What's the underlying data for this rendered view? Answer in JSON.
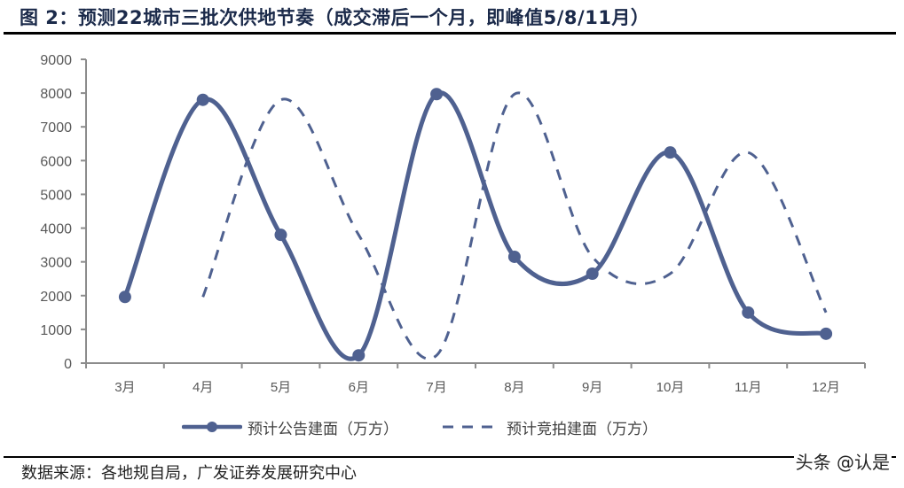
{
  "header": {
    "title": "图 2：预测22城市三批次供地节奏（成交滞后一个月，即峰值5/8/11月）"
  },
  "legend": {
    "items": [
      {
        "label": "预计公告建面（万方）",
        "style": "solid-with-markers"
      },
      {
        "label": "预计竞拍建面（万方）",
        "style": "dashed"
      }
    ]
  },
  "footer": {
    "source": "数据来源：各地规自局，广发证券发展研究中心",
    "watermark": "头条 @认是"
  },
  "colors": {
    "series": "#4f6190",
    "axis": "#8c8c8c",
    "tick_text": "#595959"
  },
  "chart_data": {
    "type": "line",
    "title": "预测22城市三批次供地节奏（成交滞后一个月，即峰值5/8/11月）",
    "xlabel": "",
    "ylabel": "",
    "ylim": [
      0,
      9000
    ],
    "yticks": [
      0,
      1000,
      2000,
      3000,
      4000,
      5000,
      6000,
      7000,
      8000,
      9000
    ],
    "grid": false,
    "legend_position": "bottom",
    "smooth": true,
    "categories": [
      "3月",
      "4月",
      "5月",
      "6月",
      "7月",
      "8月",
      "9月",
      "10月",
      "11月",
      "12月"
    ],
    "series": [
      {
        "name": "预计公告建面（万方）",
        "line_style": "solid",
        "markers": true,
        "values": [
          1960,
          7800,
          3800,
          230,
          7970,
          3150,
          2650,
          6240,
          1500,
          870
        ]
      },
      {
        "name": "预计竞拍建面（万方）",
        "line_style": "dashed",
        "markers": false,
        "values": [
          null,
          1960,
          7800,
          3800,
          230,
          7970,
          3150,
          2650,
          6240,
          1500
        ]
      }
    ]
  }
}
